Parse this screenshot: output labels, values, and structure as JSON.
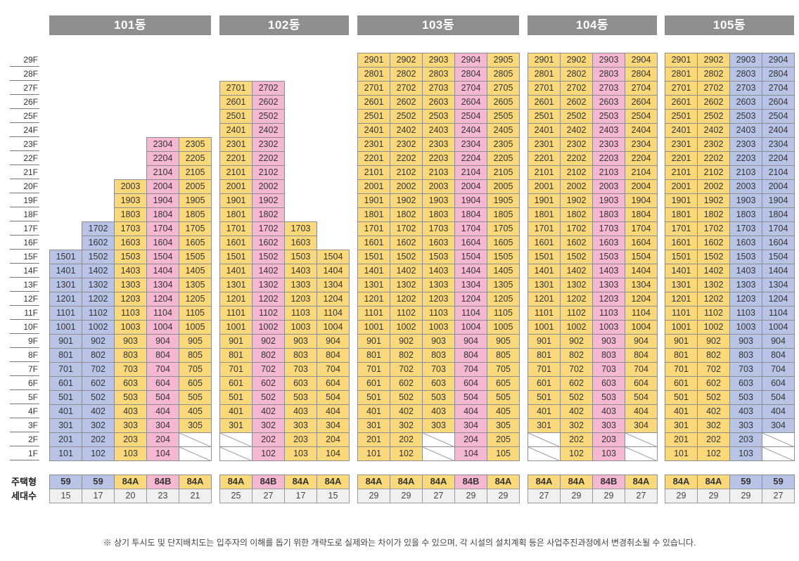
{
  "floors": [
    "29F",
    "28F",
    "27F",
    "26F",
    "25F",
    "24F",
    "23F",
    "22F",
    "21F",
    "20F",
    "19F",
    "18F",
    "17F",
    "16F",
    "15F",
    "14F",
    "13F",
    "12F",
    "11F",
    "10F",
    "9F",
    "8F",
    "7F",
    "6F",
    "5F",
    "4F",
    "3F",
    "2F",
    "1F"
  ],
  "type_label": "주택형",
  "households_label": "세대수",
  "note": "※ 상기 투시도 및 단지배치도는 입주자의 이해를 돕기 위한 개략도로 실제와는 차이가 있을 수 있으며, 각 시설의 설치계획 등은 사업추진과정에서 변경취소될 수 있습니다.",
  "colors": {
    "84A": "#fbd97a",
    "84B": "#f5b8d0",
    "59": "#b9c3e6",
    "empty": "#ffffff"
  },
  "legend_note": "Each cell is a unit number; fill color indicates housing type (yellow 84A, pink 84B, blue 59). Blank slashed cells are non-unit spaces.",
  "buildings": [
    {
      "name": "101동",
      "lines": [
        {
          "line": "01",
          "type": "59",
          "households": "15",
          "top": 15,
          "missing_floors": []
        },
        {
          "line": "02",
          "type": "59",
          "households": "17",
          "top": 17,
          "missing_floors": []
        },
        {
          "line": "03",
          "type": "84A",
          "households": "20",
          "top": 20,
          "missing_floors": []
        },
        {
          "line": "04",
          "type": "84B",
          "households": "23",
          "top": 23,
          "missing_floors": []
        },
        {
          "line": "05",
          "type": "84A",
          "households": "21",
          "top": 23,
          "missing_floors": [
            1,
            2
          ]
        }
      ]
    },
    {
      "name": "102동",
      "lines": [
        {
          "line": "01",
          "type": "84A",
          "households": "25",
          "top": 27,
          "missing_floors": [
            1,
            2
          ]
        },
        {
          "line": "02",
          "type": "84B",
          "households": "27",
          "top": 27,
          "missing_floors": []
        },
        {
          "line": "03",
          "type": "84A",
          "households": "17",
          "top": 17,
          "missing_floors": []
        },
        {
          "line": "04",
          "type": "84A",
          "households": "15",
          "top": 15,
          "missing_floors": []
        }
      ]
    },
    {
      "name": "103동",
      "lines": [
        {
          "line": "01",
          "type": "84A",
          "households": "29",
          "top": 29,
          "missing_floors": []
        },
        {
          "line": "02",
          "type": "84A",
          "households": "29",
          "top": 29,
          "missing_floors": []
        },
        {
          "line": "03",
          "type": "84A",
          "households": "27",
          "top": 29,
          "missing_floors": [
            1,
            2
          ]
        },
        {
          "line": "04",
          "type": "84B",
          "households": "29",
          "top": 29,
          "missing_floors": []
        },
        {
          "line": "05",
          "type": "84A",
          "households": "29",
          "top": 29,
          "missing_floors": []
        }
      ]
    },
    {
      "name": "104동",
      "lines": [
        {
          "line": "01",
          "type": "84A",
          "households": "27",
          "top": 29,
          "missing_floors": [
            1,
            2
          ]
        },
        {
          "line": "02",
          "type": "84A",
          "households": "29",
          "top": 29,
          "missing_floors": []
        },
        {
          "line": "03",
          "type": "84B",
          "households": "29",
          "top": 29,
          "missing_floors": []
        },
        {
          "line": "04",
          "type": "84A",
          "households": "27",
          "top": 29,
          "missing_floors": [
            1,
            2
          ]
        }
      ]
    },
    {
      "name": "105동",
      "lines": [
        {
          "line": "01",
          "type": "84A",
          "households": "29",
          "top": 29,
          "missing_floors": []
        },
        {
          "line": "02",
          "type": "84A",
          "households": "29",
          "top": 29,
          "missing_floors": []
        },
        {
          "line": "03",
          "type": "59",
          "households": "29",
          "top": 29,
          "missing_floors": []
        },
        {
          "line": "04",
          "type": "59",
          "households": "27",
          "top": 29,
          "missing_floors": [
            1,
            2
          ]
        }
      ]
    }
  ]
}
